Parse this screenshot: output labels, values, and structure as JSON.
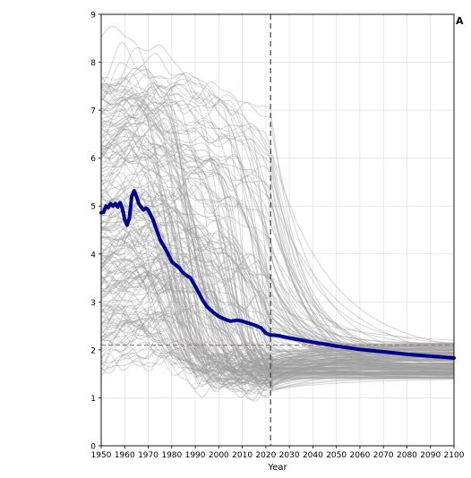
{
  "chart_data": {
    "type": "line",
    "panel_label": "A",
    "xlabel": "Year",
    "ylabel": "",
    "xlim": [
      1950,
      2100
    ],
    "ylim": [
      0,
      9
    ],
    "x_ticks": [
      "1950",
      "1960",
      "1970",
      "1980",
      "1990",
      "2000",
      "2010",
      "2020",
      "2030",
      "2040",
      "2050",
      "2060",
      "2070",
      "2080",
      "2090",
      "2100"
    ],
    "y_ticks": [
      "0",
      "1",
      "2",
      "3",
      "4",
      "5",
      "6",
      "7",
      "8",
      "9"
    ],
    "grid": true,
    "reference_line": {
      "value": 2.1,
      "style": "dashed",
      "color": "#e06666"
    },
    "projection_start_line": {
      "value": 2022,
      "style": "dashed",
      "color": "#444444"
    },
    "highlight_series": {
      "color": "#00008b",
      "x": [
        1950,
        1951,
        1952,
        1953,
        1954,
        1955,
        1956,
        1957,
        1958,
        1959,
        1960,
        1961,
        1962,
        1963,
        1964,
        1965,
        1966,
        1967,
        1968,
        1969,
        1970,
        1972,
        1975,
        1978,
        1980,
        1983,
        1985,
        1988,
        1990,
        1993,
        1995,
        1998,
        2000,
        2003,
        2005,
        2008,
        2010,
        2013,
        2015,
        2018,
        2020,
        2022,
        2025,
        2030,
        2040,
        2050,
        2060,
        2070,
        2080,
        2090,
        2100
      ],
      "values": [
        4.86,
        4.87,
        5.0,
        4.97,
        5.05,
        5.0,
        5.05,
        4.98,
        5.07,
        4.95,
        4.72,
        4.6,
        4.75,
        5.2,
        5.32,
        5.2,
        5.05,
        4.98,
        4.92,
        4.96,
        4.92,
        4.72,
        4.3,
        4.05,
        3.84,
        3.72,
        3.6,
        3.5,
        3.33,
        3.05,
        2.9,
        2.77,
        2.7,
        2.63,
        2.6,
        2.62,
        2.6,
        2.55,
        2.52,
        2.46,
        2.35,
        2.31,
        2.3,
        2.25,
        2.16,
        2.08,
        2.01,
        1.96,
        1.91,
        1.87,
        1.83
      ]
    },
    "background_series_count": 200,
    "background_series_color": "#a0a0a0"
  }
}
